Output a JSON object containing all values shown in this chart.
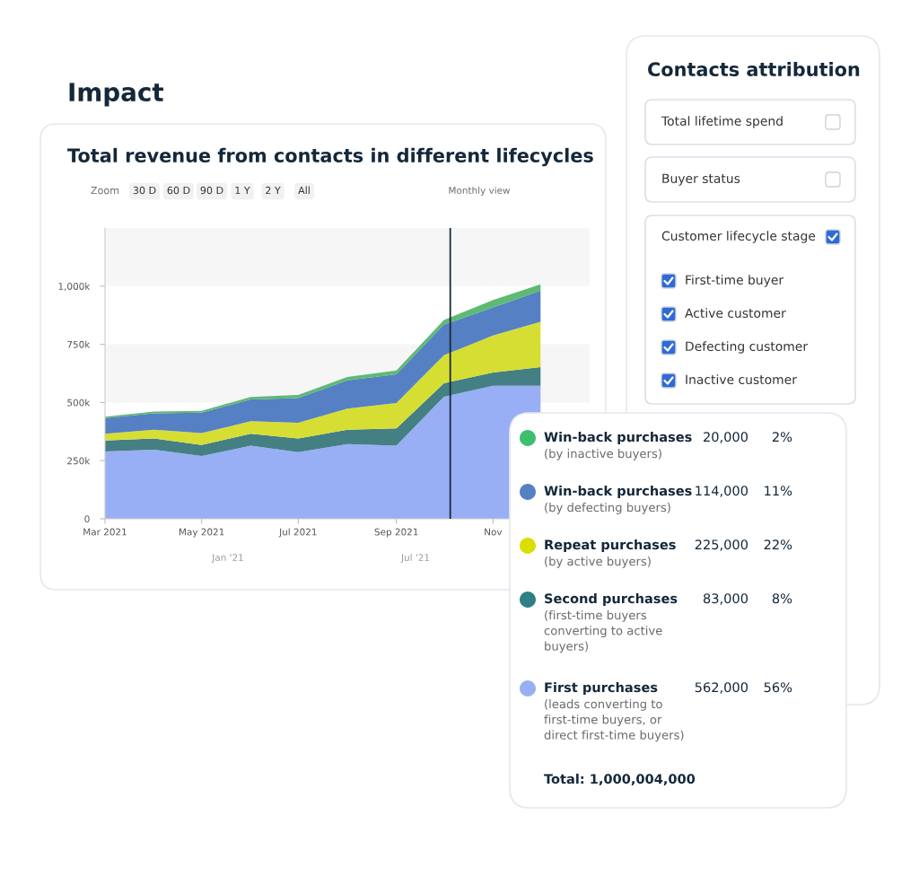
{
  "chart_data": [
    {
      "type": "area",
      "stacked": true,
      "title": "Total revenue from contacts in different lifecycles",
      "x": [
        "2021-03",
        "2021-04",
        "2021-05",
        "2021-06",
        "2021-07",
        "2021-08",
        "2021-09",
        "2021-10",
        "2021-11",
        "2021-12"
      ],
      "series": [
        {
          "color": "#98aff5",
          "values": [
            289000,
            297000,
            270000,
            314000,
            286000,
            321000,
            314000,
            525000,
            572000,
            572000
          ]
        },
        {
          "color": "#447f84",
          "values": [
            48000,
            48000,
            47000,
            52000,
            59000,
            62000,
            75000,
            58000,
            57000,
            80000
          ]
        },
        {
          "color": "#d7de33",
          "values": [
            29000,
            38000,
            51000,
            54000,
            68000,
            91000,
            109000,
            120000,
            159000,
            195000
          ]
        },
        {
          "color": "#5580c4",
          "values": [
            67000,
            70000,
            88000,
            93000,
            106000,
            121000,
            123000,
            132000,
            121000,
            134000
          ]
        },
        {
          "color": "#5dba72",
          "values": [
            6000,
            8000,
            8000,
            11000,
            13000,
            15000,
            17000,
            20000,
            31000,
            27000
          ]
        }
      ],
      "xlim": [
        "2021-03-01",
        "2022-01-01"
      ],
      "xticks": [
        {
          "value": "2021-03-01",
          "label": "Mar 2021"
        },
        {
          "value": "2021-05-01",
          "label": "May 2021"
        },
        {
          "value": "2021-07-01",
          "label": "Jul 2021"
        },
        {
          "value": "2021-09-01",
          "label": "Sep 2021"
        },
        {
          "value": "2021-11-01",
          "label": "Nov"
        }
      ],
      "ylim": [
        0,
        1250000
      ],
      "yticks": [
        0,
        {
          "value": 250000,
          "label": "250k"
        },
        {
          "value": 500000,
          "label": "500k"
        },
        {
          "value": 750000,
          "label": "750k"
        },
        {
          "value": 1000000,
          "label": "1,000k"
        }
      ],
      "bands": [
        {
          "axis": "y",
          "from": 500000,
          "to": 750000,
          "color": "#f6f6f7"
        },
        {
          "axis": "y",
          "from": 1000000,
          "to": 1250000,
          "color": "#f6f6f7"
        }
      ],
      "ref_lines": [
        {
          "axis": "x",
          "value": "2021-10-05",
          "color": "#1c2a38"
        }
      ],
      "annotations": [
        "Impact",
        "Zoom",
        "30 D",
        "60 D",
        "90 D",
        "1 Y",
        "2 Y",
        "All",
        "Monthly view",
        "Jan '21",
        "Jul '21"
      ]
    },
    {
      "type": "other",
      "categories": [
        "Win-back purchases",
        "Win-back purchases",
        "Repeat purchases",
        "Second purchases",
        "First purchases"
      ],
      "colors": [
        "#3dbf6e",
        "#5580c4",
        "#d9e000",
        "#2e7f86",
        "#98aff5"
      ],
      "series": [
        {
          "values": [
            20000,
            114000,
            225000,
            83000,
            562000
          ],
          "value_labels": [
            "20,000",
            "114,000",
            "225,000",
            "83,000",
            "562,000"
          ]
        },
        {
          "values": [
            2,
            11,
            22,
            8,
            56
          ],
          "value_labels": [
            "2%",
            "11%",
            "22%",
            "8%",
            "56%"
          ]
        }
      ],
      "annotations": [
        "(by inactive buyers)",
        "(by defecting buyers)",
        "(by active buyers)",
        "(first-time buyers\nconverting to active\nbuyers)",
        "(leads converting to\nfirst-time buyers, or\ndirect first-time buyers)",
        "Total: 1,000,004,000"
      ]
    },
    {
      "type": "other",
      "title": "Contacts attribution",
      "categories": [
        "Total lifetime spend",
        "Buyer status",
        "Customer lifecycle stage",
        "First-time buyer",
        "Active customer",
        "Defecting customer",
        "Inactive customer"
      ],
      "colors": [
        "#ffffff",
        "#ffffff",
        "#2f6ad6",
        "#2f6ad6",
        "#2f6ad6",
        "#2f6ad6",
        "#2f6ad6"
      ]
    }
  ]
}
